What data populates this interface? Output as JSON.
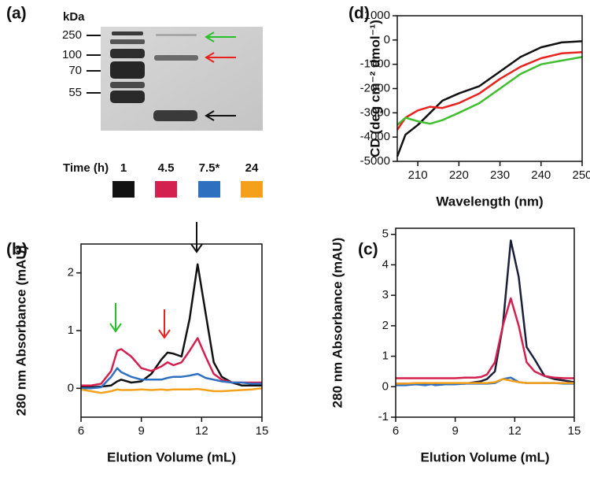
{
  "gel": {
    "label": "(a)",
    "unit": "kDa",
    "markers": [
      250,
      100,
      70,
      55
    ]
  },
  "legend": {
    "title": "Time (h)"
  },
  "chart_data": [
    {
      "type": "line",
      "label": "(b)",
      "xlabel": "Elution Volume (mL)",
      "ylabel": "280 nm Absorbance (mAU)",
      "xlim": [
        6,
        15
      ],
      "xticks": [
        6,
        9,
        12,
        15
      ],
      "ylim": [
        -0.5,
        2.5
      ],
      "yticks": [
        0,
        1,
        2
      ],
      "x": [
        6,
        6.5,
        7,
        7.5,
        7.8,
        8,
        8.5,
        9,
        9.5,
        10,
        10.3,
        10.6,
        11,
        11.4,
        11.8,
        12.2,
        12.6,
        13,
        13.5,
        14,
        14.5,
        15
      ],
      "series": [
        {
          "name": "1",
          "color": "#111111",
          "values": [
            0.02,
            0.02,
            0.03,
            0.05,
            0.12,
            0.15,
            0.1,
            0.12,
            0.25,
            0.5,
            0.62,
            0.6,
            0.55,
            1.2,
            2.15,
            1.3,
            0.45,
            0.2,
            0.1,
            0.05,
            0.05,
            0.05
          ]
        },
        {
          "name": "4.5",
          "color": "#d4204f",
          "values": [
            0.05,
            0.05,
            0.08,
            0.3,
            0.65,
            0.68,
            0.55,
            0.35,
            0.3,
            0.38,
            0.45,
            0.4,
            0.45,
            0.65,
            0.87,
            0.55,
            0.25,
            0.15,
            0.1,
            0.1,
            0.1,
            0.1
          ]
        },
        {
          "name": "7.5*",
          "color": "#2e6fc0",
          "values": [
            0,
            0,
            0.02,
            0.2,
            0.35,
            0.28,
            0.2,
            0.15,
            0.15,
            0.15,
            0.18,
            0.2,
            0.2,
            0.22,
            0.25,
            0.18,
            0.15,
            0.12,
            0.1,
            0.1,
            0.08,
            0.08
          ]
        },
        {
          "name": "24",
          "color": "#f5a01a",
          "values": [
            -0.02,
            -0.05,
            -0.08,
            -0.05,
            -0.02,
            -0.03,
            -0.03,
            -0.02,
            -0.03,
            -0.02,
            -0.03,
            -0.02,
            -0.02,
            -0.02,
            -0.01,
            -0.03,
            -0.05,
            -0.05,
            -0.04,
            -0.03,
            -0.02,
            0
          ]
        }
      ]
    },
    {
      "type": "line",
      "label": "(c)",
      "xlabel": "Elution Volume (mL)",
      "ylabel": "280 nm Absorbance (mAU)",
      "xlim": [
        6,
        15
      ],
      "xticks": [
        6,
        9,
        12,
        15
      ],
      "ylim": [
        -1,
        5.2
      ],
      "yticks": [
        -1,
        0,
        1,
        2,
        3,
        4,
        5
      ],
      "x": [
        6,
        6.5,
        7,
        7.5,
        7.8,
        8,
        8.5,
        9,
        9.5,
        10,
        10.3,
        10.6,
        11,
        11.4,
        11.8,
        12.2,
        12.6,
        13,
        13.5,
        14,
        14.5,
        15
      ],
      "series": [
        {
          "color": "#1a1f3a",
          "values": [
            0.1,
            0.1,
            0.1,
            0.1,
            0.1,
            0.1,
            0.1,
            0.1,
            0.1,
            0.15,
            0.18,
            0.25,
            0.5,
            2.0,
            4.8,
            3.6,
            1.3,
            0.9,
            0.35,
            0.25,
            0.2,
            0.15
          ]
        },
        {
          "color": "#d4204f",
          "values": [
            0.28,
            0.28,
            0.28,
            0.28,
            0.28,
            0.28,
            0.28,
            0.28,
            0.3,
            0.3,
            0.32,
            0.4,
            0.8,
            2.0,
            2.9,
            2.0,
            0.8,
            0.5,
            0.35,
            0.3,
            0.28,
            0.28
          ]
        },
        {
          "color": "#2e6fc0",
          "values": [
            0.05,
            0.05,
            0.08,
            0.05,
            0.08,
            0.05,
            0.08,
            0.08,
            0.1,
            0.1,
            0.1,
            0.1,
            0.12,
            0.25,
            0.3,
            0.15,
            0.12,
            0.12,
            0.12,
            0.12,
            0.1,
            0.1
          ]
        },
        {
          "color": "#f5a01a",
          "values": [
            0.1,
            0.1,
            0.12,
            0.12,
            0.12,
            0.12,
            0.12,
            0.12,
            0.12,
            0.12,
            0.12,
            0.12,
            0.15,
            0.25,
            0.2,
            0.15,
            0.12,
            0.12,
            0.12,
            0.12,
            0.12,
            0.12
          ]
        }
      ]
    },
    {
      "type": "line",
      "label": "(d)",
      "xlabel": "Wavelength (nm)",
      "ylabel": "CD (deg cm⁻² dmol⁻¹)",
      "xlim": [
        205,
        250
      ],
      "xticks": [
        210,
        220,
        230,
        240,
        250
      ],
      "ylim": [
        -5000,
        1000
      ],
      "yticks": [
        -5000,
        -4000,
        -3000,
        -2000,
        -1000,
        0,
        1000
      ],
      "x": [
        205,
        207,
        210,
        213,
        216,
        220,
        225,
        230,
        235,
        240,
        245,
        250
      ],
      "series": [
        {
          "color": "#111111",
          "values": [
            -4800,
            -3900,
            -3500,
            -3000,
            -2500,
            -2200,
            -1900,
            -1300,
            -700,
            -300,
            -100,
            -50
          ]
        },
        {
          "color": "#e8231f",
          "values": [
            -3700,
            -3200,
            -2900,
            -2750,
            -2800,
            -2600,
            -2200,
            -1600,
            -1100,
            -750,
            -550,
            -500
          ]
        },
        {
          "color": "#3fbf2e",
          "values": [
            -3500,
            -3200,
            -3350,
            -3450,
            -3300,
            -3000,
            -2600,
            -2000,
            -1400,
            -1000,
            -850,
            -700
          ]
        }
      ]
    }
  ]
}
